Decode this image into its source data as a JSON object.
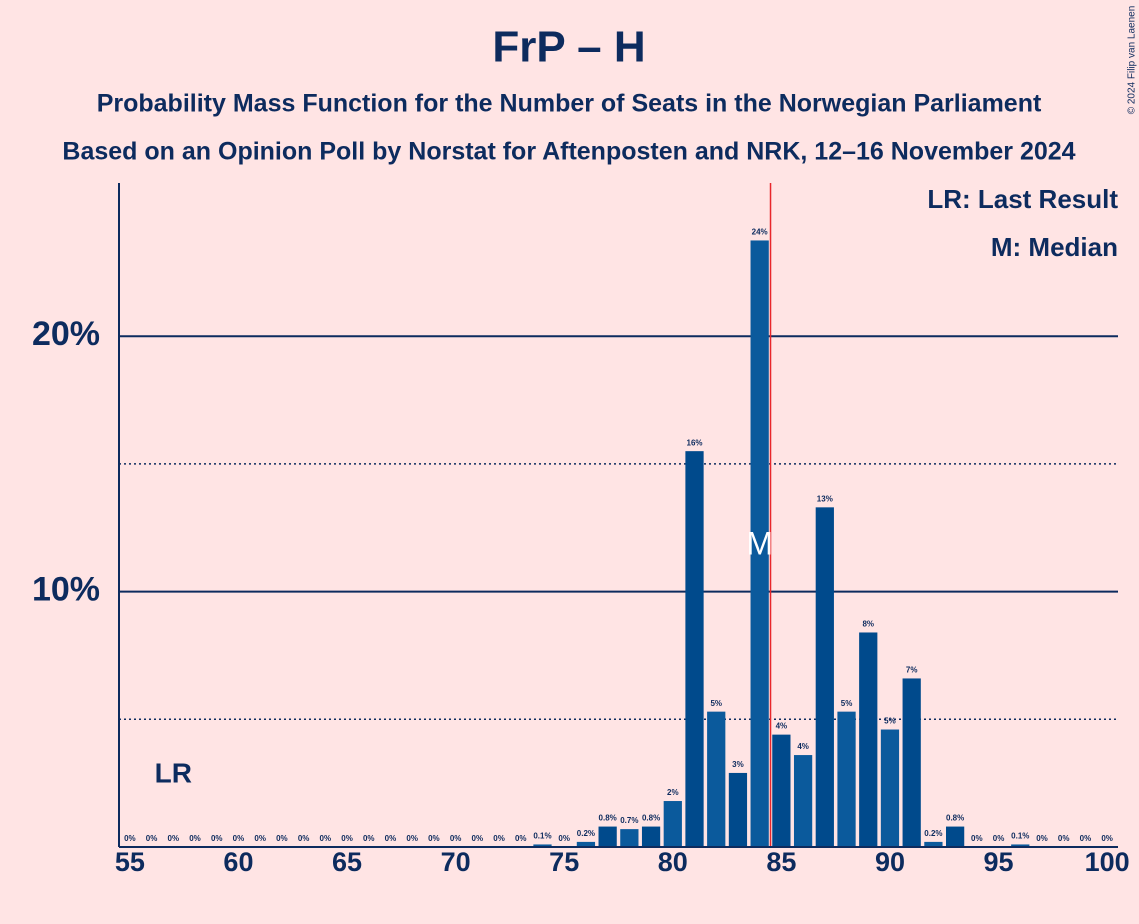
{
  "chart_data": {
    "type": "bar",
    "title": "FrP – H",
    "subtitle": [
      "Probability Mass Function for the Number of Seats in the Norwegian Parliament",
      "Based on an Opinion Poll by Norstat for Aftenposten and NRK, 12–16 November 2024"
    ],
    "copyright": "© 2024 Filip van Laenen",
    "legend": [
      "LR: Last Result",
      "M: Median"
    ],
    "annotations": [
      {
        "text": "LR",
        "x": 57
      },
      {
        "text": "M",
        "x": 84
      }
    ],
    "threshold": 84.5,
    "x": [
      55,
      56,
      57,
      58,
      59,
      60,
      61,
      62,
      63,
      64,
      65,
      66,
      67,
      68,
      69,
      70,
      71,
      72,
      73,
      74,
      75,
      76,
      77,
      78,
      79,
      80,
      81,
      82,
      83,
      84,
      85,
      86,
      87,
      88,
      89,
      90,
      91,
      92,
      93,
      94,
      95,
      96,
      97,
      98,
      99,
      100
    ],
    "values": [
      0,
      0,
      0,
      0,
      0,
      0,
      0,
      0,
      0,
      0,
      0,
      0,
      0,
      0,
      0,
      0,
      0,
      0,
      0,
      0.1,
      0,
      0.2,
      0.8,
      0.7,
      0.8,
      1.8,
      15.5,
      5.3,
      2.9,
      23.75,
      4.4,
      3.6,
      13.3,
      5.3,
      8.4,
      4.6,
      6.6,
      0.2,
      0.8,
      0,
      0,
      0.1,
      0,
      0,
      0,
      0
    ],
    "value_labels": [
      "0%",
      "0%",
      "0%",
      "0%",
      "0%",
      "0%",
      "0%",
      "0%",
      "0%",
      "0%",
      "0%",
      "0%",
      "0%",
      "0%",
      "0%",
      "0%",
      "0%",
      "0%",
      "0%",
      "0.1%",
      "0%",
      "0.2%",
      "0.8%",
      "0.7%",
      "0.8%",
      "2%",
      "16%",
      "5%",
      "3%",
      "24%",
      "4%",
      "4%",
      "13%",
      "5%",
      "8%",
      "5%",
      "7%",
      "0.2%",
      "0.8%",
      "0%",
      "0%",
      "0.1%",
      "0%",
      "0%",
      "0%",
      "0%"
    ],
    "colors": [
      "#004a8c",
      "#0b5a9c"
    ],
    "xlim": [
      54.5,
      100.5
    ],
    "xticks": [
      55,
      60,
      65,
      70,
      75,
      80,
      85,
      90,
      95,
      100
    ],
    "ylim": [
      0,
      26
    ],
    "yticks": [
      {
        "value": 10,
        "label": "10%"
      },
      {
        "value": 20,
        "label": "20%"
      }
    ],
    "minor_yticks": [
      5,
      15
    ],
    "grid": true
  }
}
